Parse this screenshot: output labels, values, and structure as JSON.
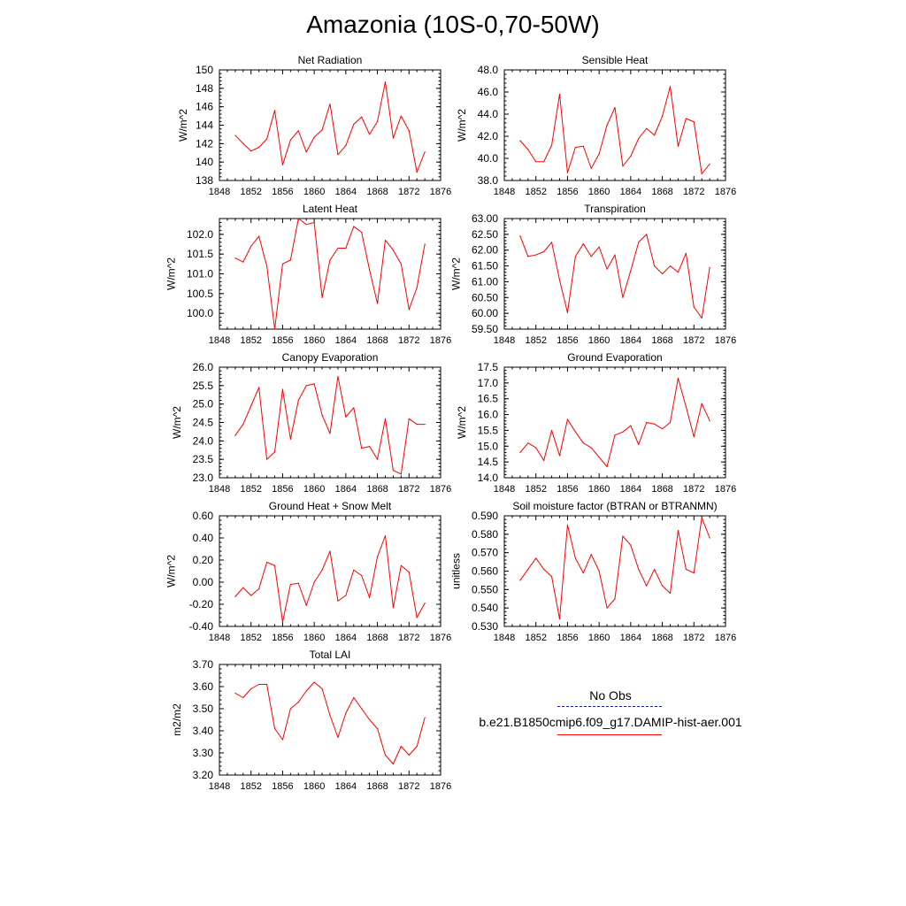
{
  "title": "Amazonia (10S-0,70-50W)",
  "legend": {
    "obs_label": "No Obs",
    "model_label": "b.e21.B1850cmip6.f09_g17.DAMIP-hist-aer.001",
    "obs_color": "#1a1ab0",
    "model_color": "#ff0000"
  },
  "line_color": "#ff0000",
  "chart_data": [
    {
      "type": "line",
      "title": "Net Radiation",
      "ylabel": "W/m^2",
      "xlim": [
        1848,
        1876
      ],
      "ylim": [
        138,
        150
      ],
      "xticks": [
        "1848",
        "1852",
        "1856",
        "1860",
        "1864",
        "1868",
        "1872",
        "1876"
      ],
      "yticks": [
        "138",
        "140",
        "142",
        "144",
        "146",
        "148",
        "150"
      ],
      "x": [
        1850,
        1851,
        1852,
        1853,
        1854,
        1855,
        1856,
        1857,
        1858,
        1859,
        1860,
        1861,
        1862,
        1863,
        1864,
        1865,
        1866,
        1867,
        1868,
        1869,
        1870,
        1871,
        1872,
        1873,
        1874
      ],
      "values": [
        142.9,
        142.0,
        141.2,
        141.6,
        142.5,
        145.6,
        139.7,
        142.4,
        143.4,
        141.1,
        142.7,
        143.5,
        146.3,
        140.8,
        141.8,
        144.1,
        144.9,
        143.0,
        144.4,
        148.7,
        142.6,
        145.0,
        143.4,
        138.9,
        141.1
      ]
    },
    {
      "type": "line",
      "title": "Sensible Heat",
      "ylabel": "W/m^2",
      "xlim": [
        1848,
        1876
      ],
      "ylim": [
        38,
        48
      ],
      "xticks": [
        "1848",
        "1852",
        "1856",
        "1860",
        "1864",
        "1868",
        "1872",
        "1876"
      ],
      "yticks": [
        "38.0",
        "40.0",
        "42.0",
        "44.0",
        "46.0",
        "48.0"
      ],
      "x": [
        1850,
        1851,
        1852,
        1853,
        1854,
        1855,
        1856,
        1857,
        1858,
        1859,
        1860,
        1861,
        1862,
        1863,
        1864,
        1865,
        1866,
        1867,
        1868,
        1869,
        1870,
        1871,
        1872,
        1873,
        1874
      ],
      "values": [
        41.6,
        40.8,
        39.7,
        39.7,
        41.2,
        45.8,
        38.7,
        41.0,
        41.1,
        39.1,
        40.4,
        43.0,
        44.6,
        39.3,
        40.2,
        41.8,
        42.7,
        42.1,
        43.8,
        46.5,
        41.1,
        43.6,
        43.3,
        38.6,
        39.5
      ]
    },
    {
      "type": "line",
      "title": "Latent Heat",
      "ylabel": "W/m^2",
      "xlim": [
        1848,
        1876
      ],
      "ylim": [
        99.6,
        102.4
      ],
      "xticks": [
        "1848",
        "1852",
        "1856",
        "1860",
        "1864",
        "1868",
        "1872",
        "1876"
      ],
      "yticks": [
        "100.0",
        "100.5",
        "101.0",
        "101.5",
        "102.0"
      ],
      "x": [
        1850,
        1851,
        1852,
        1853,
        1854,
        1855,
        1856,
        1857,
        1858,
        1859,
        1860,
        1861,
        1862,
        1863,
        1864,
        1865,
        1866,
        1867,
        1868,
        1869,
        1870,
        1871,
        1872,
        1873,
        1874
      ],
      "values": [
        101.4,
        101.3,
        101.7,
        101.95,
        101.2,
        99.6,
        101.25,
        101.35,
        102.4,
        102.25,
        102.3,
        100.4,
        101.35,
        101.65,
        101.65,
        102.2,
        102.05,
        101.1,
        100.25,
        101.85,
        101.6,
        101.25,
        100.1,
        100.65,
        101.75
      ]
    },
    {
      "type": "line",
      "title": "Transpiration",
      "ylabel": "W/m^2",
      "xlim": [
        1848,
        1876
      ],
      "ylim": [
        59.5,
        63.0
      ],
      "xticks": [
        "1848",
        "1852",
        "1856",
        "1860",
        "1864",
        "1868",
        "1872",
        "1876"
      ],
      "yticks": [
        "59.50",
        "60.00",
        "60.50",
        "61.00",
        "61.50",
        "62.00",
        "62.50",
        "63.00"
      ],
      "x": [
        1850,
        1851,
        1852,
        1853,
        1854,
        1855,
        1856,
        1857,
        1858,
        1859,
        1860,
        1861,
        1862,
        1863,
        1864,
        1865,
        1866,
        1867,
        1868,
        1869,
        1870,
        1871,
        1872,
        1873,
        1874
      ],
      "values": [
        62.45,
        61.8,
        61.85,
        61.95,
        62.25,
        61.05,
        60.02,
        61.8,
        62.2,
        61.8,
        62.1,
        61.4,
        61.85,
        60.5,
        61.35,
        62.25,
        62.5,
        61.5,
        61.25,
        61.5,
        61.3,
        61.9,
        60.2,
        59.85,
        61.45
      ]
    },
    {
      "type": "line",
      "title": "Canopy Evaporation",
      "ylabel": "W/m^2",
      "xlim": [
        1848,
        1876
      ],
      "ylim": [
        23.0,
        26.0
      ],
      "xticks": [
        "1848",
        "1852",
        "1856",
        "1860",
        "1864",
        "1868",
        "1872",
        "1876"
      ],
      "yticks": [
        "23.0",
        "23.5",
        "24.0",
        "24.5",
        "25.0",
        "25.5",
        "26.0"
      ],
      "x": [
        1850,
        1851,
        1852,
        1853,
        1854,
        1855,
        1856,
        1857,
        1858,
        1859,
        1860,
        1861,
        1862,
        1863,
        1864,
        1865,
        1866,
        1867,
        1868,
        1869,
        1870,
        1871,
        1872,
        1873,
        1874
      ],
      "values": [
        24.15,
        24.45,
        24.95,
        25.45,
        23.5,
        23.7,
        25.4,
        24.05,
        25.1,
        25.5,
        25.55,
        24.7,
        24.2,
        25.75,
        24.65,
        24.9,
        23.8,
        23.85,
        23.5,
        24.6,
        23.2,
        23.1,
        24.6,
        24.45,
        24.45
      ]
    },
    {
      "type": "line",
      "title": "Ground Evaporation",
      "ylabel": "W/m^2",
      "xlim": [
        1848,
        1876
      ],
      "ylim": [
        14.0,
        17.5
      ],
      "xticks": [
        "1848",
        "1852",
        "1856",
        "1860",
        "1864",
        "1868",
        "1872",
        "1876"
      ],
      "yticks": [
        "14.0",
        "14.5",
        "15.0",
        "15.5",
        "16.0",
        "16.5",
        "17.0",
        "17.5"
      ],
      "x": [
        1850,
        1851,
        1852,
        1853,
        1854,
        1855,
        1856,
        1857,
        1858,
        1859,
        1860,
        1861,
        1862,
        1863,
        1864,
        1865,
        1866,
        1867,
        1868,
        1869,
        1870,
        1871,
        1872,
        1873,
        1874
      ],
      "values": [
        14.8,
        15.1,
        14.95,
        14.55,
        15.5,
        14.7,
        15.85,
        15.45,
        15.1,
        14.95,
        14.65,
        14.35,
        15.35,
        15.45,
        15.65,
        15.05,
        15.75,
        15.7,
        15.55,
        15.75,
        17.15,
        16.25,
        15.3,
        16.35,
        15.8
      ]
    },
    {
      "type": "line",
      "title": "Ground Heat + Snow Melt",
      "ylabel": "W/m^2",
      "xlim": [
        1848,
        1876
      ],
      "ylim": [
        -0.4,
        0.6
      ],
      "xticks": [
        "1848",
        "1852",
        "1856",
        "1860",
        "1864",
        "1868",
        "1872",
        "1876"
      ],
      "yticks": [
        "-0.40",
        "-0.20",
        "0.00",
        "0.20",
        "0.40",
        "0.60"
      ],
      "x": [
        1850,
        1851,
        1852,
        1853,
        1854,
        1855,
        1856,
        1857,
        1858,
        1859,
        1860,
        1861,
        1862,
        1863,
        1864,
        1865,
        1866,
        1867,
        1868,
        1869,
        1870,
        1871,
        1872,
        1873,
        1874
      ],
      "values": [
        -0.13,
        -0.05,
        -0.12,
        -0.06,
        0.18,
        0.15,
        -0.36,
        -0.02,
        -0.01,
        -0.21,
        0.0,
        0.11,
        0.28,
        -0.17,
        -0.12,
        0.11,
        0.06,
        -0.14,
        0.23,
        0.42,
        -0.23,
        0.15,
        0.09,
        -0.32,
        -0.19
      ]
    },
    {
      "type": "line",
      "title": "Soil moisture factor (BTRAN or BTRANMN)",
      "ylabel": "unitless",
      "xlim": [
        1848,
        1876
      ],
      "ylim": [
        0.53,
        0.59
      ],
      "xticks": [
        "1848",
        "1852",
        "1856",
        "1860",
        "1864",
        "1868",
        "1872",
        "1876"
      ],
      "yticks": [
        "0.530",
        "0.540",
        "0.550",
        "0.560",
        "0.570",
        "0.580",
        "0.590"
      ],
      "x": [
        1850,
        1851,
        1852,
        1853,
        1854,
        1855,
        1856,
        1857,
        1858,
        1859,
        1860,
        1861,
        1862,
        1863,
        1864,
        1865,
        1866,
        1867,
        1868,
        1869,
        1870,
        1871,
        1872,
        1873,
        1874
      ],
      "values": [
        0.555,
        0.561,
        0.567,
        0.561,
        0.557,
        0.534,
        0.585,
        0.567,
        0.559,
        0.569,
        0.56,
        0.54,
        0.545,
        0.579,
        0.574,
        0.561,
        0.552,
        0.561,
        0.552,
        0.548,
        0.582,
        0.561,
        0.559,
        0.589,
        0.578
      ]
    },
    {
      "type": "line",
      "title": "Total LAI",
      "ylabel": "m2/m2",
      "xlim": [
        1848,
        1876
      ],
      "ylim": [
        3.2,
        3.7
      ],
      "xticks": [
        "1848",
        "1852",
        "1856",
        "1860",
        "1864",
        "1868",
        "1872",
        "1876"
      ],
      "yticks": [
        "3.20",
        "3.30",
        "3.40",
        "3.50",
        "3.60",
        "3.70"
      ],
      "x": [
        1850,
        1851,
        1852,
        1853,
        1854,
        1855,
        1856,
        1857,
        1858,
        1859,
        1860,
        1861,
        1862,
        1863,
        1864,
        1865,
        1866,
        1867,
        1868,
        1869,
        1870,
        1871,
        1872,
        1873,
        1874
      ],
      "values": [
        3.57,
        3.55,
        3.59,
        3.61,
        3.61,
        3.41,
        3.36,
        3.5,
        3.53,
        3.58,
        3.62,
        3.59,
        3.47,
        3.37,
        3.48,
        3.55,
        3.5,
        3.45,
        3.41,
        3.29,
        3.25,
        3.33,
        3.29,
        3.33,
        3.46
      ]
    }
  ]
}
